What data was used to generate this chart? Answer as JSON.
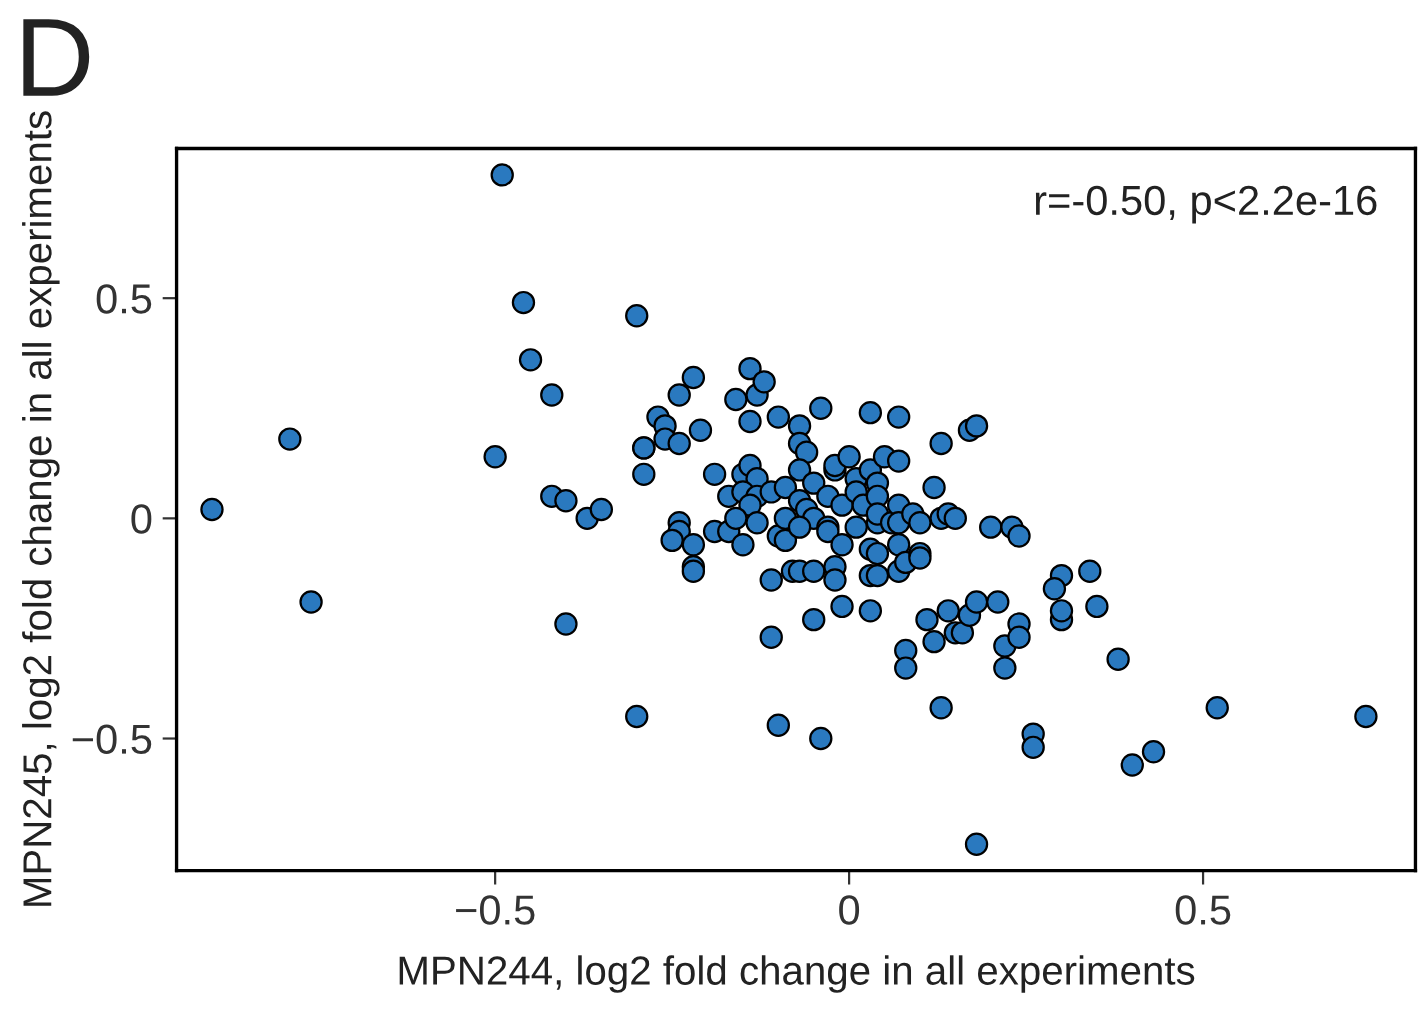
{
  "chart_data": {
    "type": "scatter",
    "title": "D",
    "xlabel": "MPN244, log2 fold change in all experiments",
    "ylabel": "MPN245, log2 fold change in all experiments",
    "annotations": [
      "r=-0.50, p<2.2e-16"
    ],
    "xlim": [
      -0.95,
      0.8
    ],
    "ylim": [
      -0.8,
      0.84
    ],
    "xticks": [
      {
        "value": -0.5,
        "label": "−0.5"
      },
      0,
      0.5
    ],
    "yticks": [
      {
        "value": -0.5,
        "label": "−0.5"
      },
      0,
      0.5
    ],
    "grid": false,
    "marker": "circle",
    "series": [
      {
        "color": "#2a79bf",
        "x": [
          -0.9,
          -0.79,
          -0.76,
          -0.49,
          -0.5,
          -0.46,
          -0.45,
          -0.42,
          -0.42,
          -0.4,
          -0.37,
          -0.35,
          -0.4,
          -0.3,
          -0.3,
          -0.29,
          -0.29,
          -0.29,
          -0.27,
          -0.26,
          -0.26,
          -0.24,
          -0.24,
          -0.22,
          -0.21,
          -0.24,
          -0.24,
          -0.25,
          -0.22,
          -0.22,
          -0.22,
          -0.19,
          -0.19,
          -0.17,
          -0.17,
          -0.16,
          -0.14,
          -0.13,
          -0.12,
          -0.14,
          -0.1,
          -0.15,
          -0.14,
          -0.13,
          -0.15,
          -0.13,
          -0.14,
          -0.16,
          -0.15,
          -0.13,
          -0.11,
          -0.1,
          -0.09,
          -0.11,
          -0.11,
          -0.1,
          -0.09,
          -0.09,
          -0.08,
          -0.07,
          -0.07,
          -0.07,
          -0.07,
          -0.06,
          -0.07,
          -0.05,
          -0.06,
          -0.05,
          -0.07,
          -0.04,
          -0.05,
          -0.05,
          -0.04,
          -0.03,
          -0.03,
          -0.03,
          -0.02,
          -0.02,
          -0.02,
          -0.02,
          -0.01,
          -0.01,
          -0.01,
          0.0,
          0.01,
          0.01,
          0.01,
          0.02,
          0.03,
          0.03,
          0.03,
          0.03,
          0.03,
          0.04,
          0.04,
          0.04,
          0.04,
          0.05,
          0.04,
          0.04,
          0.06,
          0.07,
          0.07,
          0.07,
          0.07,
          0.07,
          0.07,
          0.08,
          0.09,
          0.1,
          0.1,
          0.1,
          0.08,
          0.08,
          0.11,
          0.12,
          0.12,
          0.13,
          0.13,
          0.14,
          0.15,
          0.14,
          0.13,
          0.15,
          0.16,
          0.17,
          0.18,
          0.17,
          0.18,
          0.18,
          0.2,
          0.21,
          0.22,
          0.22,
          0.23,
          0.24,
          0.24,
          0.24,
          0.26,
          0.26,
          0.3,
          0.29,
          0.3,
          0.3,
          0.34,
          0.35,
          0.38,
          0.4,
          0.43,
          0.52,
          0.73
        ],
        "values": [
          0.02,
          0.18,
          -0.19,
          0.78,
          0.14,
          0.49,
          0.36,
          0.28,
          0.05,
          0.04,
          0.0,
          0.02,
          -0.24,
          0.46,
          -0.45,
          0.16,
          0.16,
          0.1,
          0.23,
          0.21,
          0.18,
          0.17,
          0.28,
          0.32,
          0.2,
          -0.01,
          -0.03,
          -0.05,
          -0.06,
          -0.11,
          -0.12,
          0.1,
          -0.03,
          -0.03,
          0.05,
          0.27,
          0.34,
          0.28,
          0.31,
          0.22,
          0.23,
          0.1,
          0.12,
          0.09,
          0.06,
          0.05,
          0.03,
          0.0,
          -0.06,
          -0.01,
          0.06,
          -0.04,
          -0.05,
          -0.14,
          -0.27,
          -0.47,
          0.07,
          0.0,
          -0.12,
          -0.12,
          0.04,
          0.21,
          0.17,
          0.15,
          0.11,
          0.08,
          0.02,
          0.0,
          -0.02,
          0.25,
          -0.12,
          -0.23,
          -0.5,
          0.05,
          -0.02,
          -0.03,
          0.11,
          0.12,
          -0.11,
          -0.14,
          0.03,
          -0.06,
          -0.2,
          0.14,
          0.09,
          0.06,
          -0.02,
          0.03,
          -0.13,
          -0.21,
          0.24,
          0.11,
          -0.07,
          -0.01,
          0.08,
          0.05,
          -0.13,
          0.14,
          0.01,
          -0.08,
          -0.01,
          0.23,
          0.13,
          0.03,
          -0.01,
          -0.06,
          -0.12,
          -0.1,
          0.01,
          -0.08,
          -0.01,
          -0.09,
          -0.3,
          -0.34,
          -0.23,
          0.07,
          -0.28,
          0.17,
          0.0,
          0.01,
          0.0,
          -0.21,
          -0.43,
          -0.26,
          -0.26,
          0.2,
          0.21,
          -0.22,
          -0.19,
          -0.74,
          -0.02,
          -0.19,
          -0.29,
          -0.34,
          -0.02,
          -0.04,
          -0.24,
          -0.27,
          -0.49,
          -0.52,
          -0.13,
          -0.16,
          -0.23,
          -0.21,
          -0.12,
          -0.2,
          -0.32,
          -0.56,
          -0.53,
          -0.43,
          -0.45
        ]
      }
    ]
  }
}
